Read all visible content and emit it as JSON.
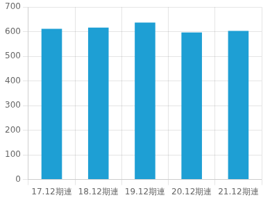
{
  "chart_data": {
    "type": "bar",
    "categories": [
      "17.12期連",
      "18.12期連",
      "19.12期連",
      "20.12期連",
      "21.12期連"
    ],
    "values": [
      612,
      617,
      637,
      597,
      603
    ],
    "color": "#1e9fd4",
    "ylim": [
      0,
      700
    ],
    "yticks": [
      0,
      100,
      200,
      300,
      400,
      500,
      600,
      700
    ],
    "grid": true
  }
}
